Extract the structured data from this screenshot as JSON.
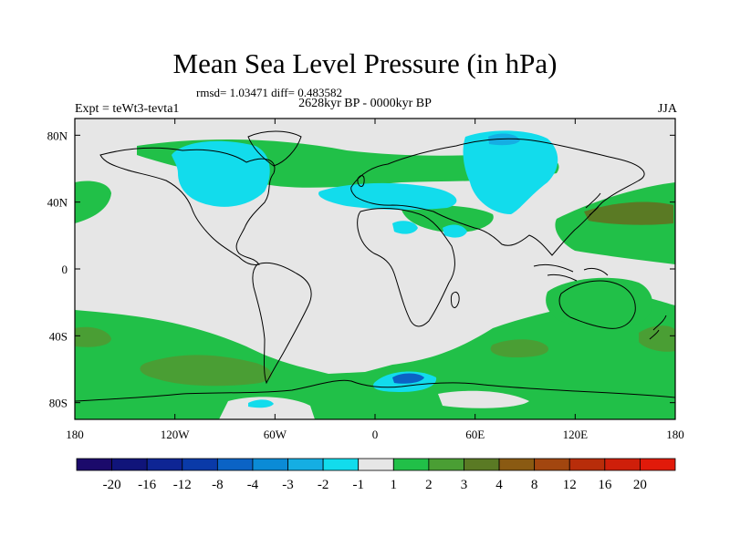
{
  "title": "Mean Sea Level Pressure (in hPa)",
  "stats": "rmsd= 1.03471 diff= 0.483582",
  "period": "2628kyr BP - 0000kyr BP",
  "experiment": "Expt = teWt3-tevta1",
  "season": "JJA",
  "map": {
    "lon_range": [
      -180,
      180
    ],
    "lat_range": [
      -90,
      90
    ],
    "x_ticks": [
      {
        "value": -180,
        "label": "180"
      },
      {
        "value": -120,
        "label": "120W"
      },
      {
        "value": -60,
        "label": "60W"
      },
      {
        "value": 0,
        "label": "0"
      },
      {
        "value": 60,
        "label": "60E"
      },
      {
        "value": 120,
        "label": "120E"
      },
      {
        "value": 180,
        "label": "180"
      }
    ],
    "y_ticks": [
      {
        "value": 80,
        "label": "80N"
      },
      {
        "value": 40,
        "label": "40N"
      },
      {
        "value": 0,
        "label": "0"
      },
      {
        "value": -40,
        "label": "40S"
      },
      {
        "value": -80,
        "label": "80S"
      }
    ],
    "background_color": "#e6e6e6"
  },
  "colorbar": {
    "colors": [
      "#1b0a6b",
      "#10147a",
      "#0e2594",
      "#0a3aa8",
      "#0b63c5",
      "#0b8bd6",
      "#15aee3",
      "#12dcec",
      "#e6e6e6",
      "#21c048",
      "#4a9e34",
      "#5a7a24",
      "#8a5a12",
      "#a2460f",
      "#b82d0a",
      "#cf1f0a",
      "#e11a0a"
    ],
    "labels": [
      "-20",
      "-16",
      "-12",
      "-8",
      "-4",
      "-3",
      "-2",
      "-1",
      "1",
      "2",
      "3",
      "4",
      "8",
      "12",
      "16",
      "20"
    ]
  }
}
